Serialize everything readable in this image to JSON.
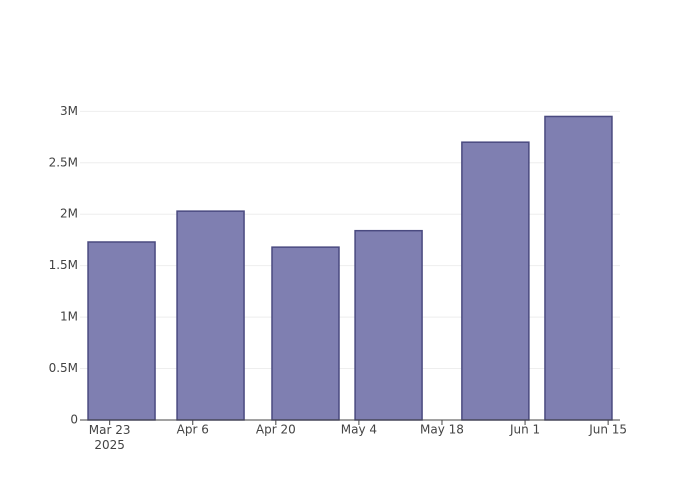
{
  "chart_data": {
    "type": "bar",
    "x": [
      "2025-03-25",
      "2025-04-09",
      "2025-04-25",
      "2025-05-09",
      "2025-05-27",
      "2025-06-10"
    ],
    "values": [
      1730000,
      2030000,
      1680000,
      1840000,
      2700000,
      2950000
    ],
    "color": "#7f7fb1",
    "edge_color": "#4a4a80",
    "xlim": [
      "2025-03-18",
      "2025-06-17"
    ],
    "xticks": [
      {
        "value": "2025-03-23",
        "label": "Mar 23\n2025"
      },
      {
        "value": "2025-04-06",
        "label": "Apr 6"
      },
      {
        "value": "2025-04-20",
        "label": "Apr 20"
      },
      {
        "value": "2025-05-04",
        "label": "May 4"
      },
      {
        "value": "2025-05-18",
        "label": "May 18"
      },
      {
        "value": "2025-06-01",
        "label": "Jun 1"
      },
      {
        "value": "2025-06-15",
        "label": "Jun 15"
      }
    ],
    "ylim": [
      0,
      3110000
    ],
    "yticks": [
      0,
      {
        "value": 500000,
        "label": "0.5M"
      },
      {
        "value": 1000000,
        "label": "1M"
      },
      {
        "value": 1500000,
        "label": "1.5M"
      },
      {
        "value": 2000000,
        "label": "2M"
      },
      {
        "value": 2500000,
        "label": "2.5M"
      },
      {
        "value": 3000000,
        "label": "3M"
      }
    ],
    "grid": true
  }
}
